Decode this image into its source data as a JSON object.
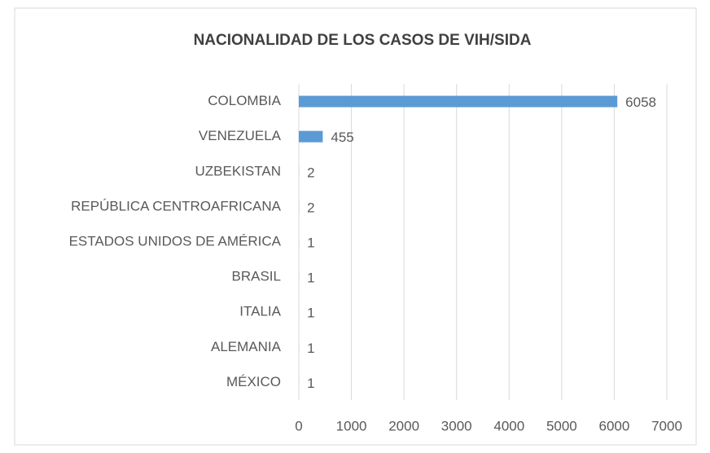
{
  "chart_data": {
    "type": "barh",
    "title": "NACIONALIDAD DE LOS CASOS DE VIH/SIDA",
    "categories": [
      "COLOMBIA",
      "VENEZUELA",
      "UZBEKISTAN",
      "REPÚBLICA CENTROAFRICANA",
      "ESTADOS UNIDOS DE AMÉRICA",
      "BRASIL",
      "ITALIA",
      "ALEMANIA",
      "MÉXICO"
    ],
    "values": [
      6058,
      455,
      2,
      2,
      1,
      1,
      1,
      1,
      1
    ],
    "color": "#5b9bd5",
    "xlim": [
      0,
      7000
    ],
    "xticks": [
      0,
      1000,
      2000,
      3000,
      4000,
      5000,
      6000,
      7000
    ],
    "grid": true
  }
}
